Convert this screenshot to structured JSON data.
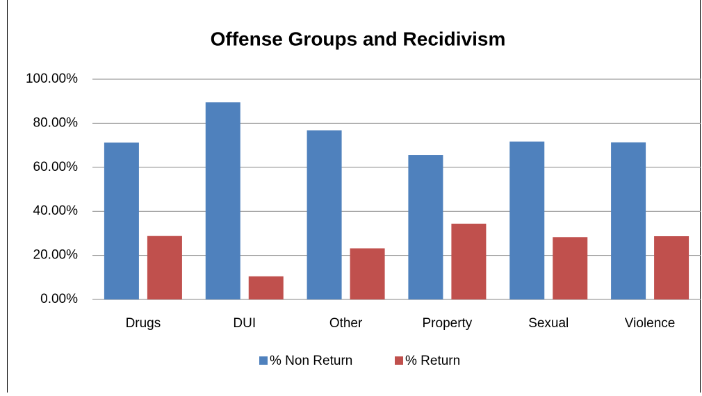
{
  "chart_data": {
    "type": "bar",
    "title": "Offense Groups and Recidivism",
    "categories": [
      "Drugs",
      "DUI",
      "Other",
      "Property",
      "Sexual",
      "Violence"
    ],
    "series": [
      {
        "name": "% Non Return",
        "color": "#4f81bd",
        "values": [
          71.2,
          89.5,
          76.8,
          65.6,
          71.7,
          71.3
        ]
      },
      {
        "name": "%  Return",
        "color": "#c0504d",
        "values": [
          28.8,
          10.5,
          23.2,
          34.4,
          28.3,
          28.7
        ]
      }
    ],
    "ylim": [
      0,
      100
    ],
    "yticks": [
      {
        "value": 0,
        "label": "0.00%"
      },
      {
        "value": 20,
        "label": "20.00%"
      },
      {
        "value": 40,
        "label": "40.00%"
      },
      {
        "value": 60,
        "label": "60.00%"
      },
      {
        "value": 80,
        "label": "80.00%"
      },
      {
        "value": 100,
        "label": "100.00%"
      }
    ],
    "grid": true,
    "legend": "bottom"
  }
}
